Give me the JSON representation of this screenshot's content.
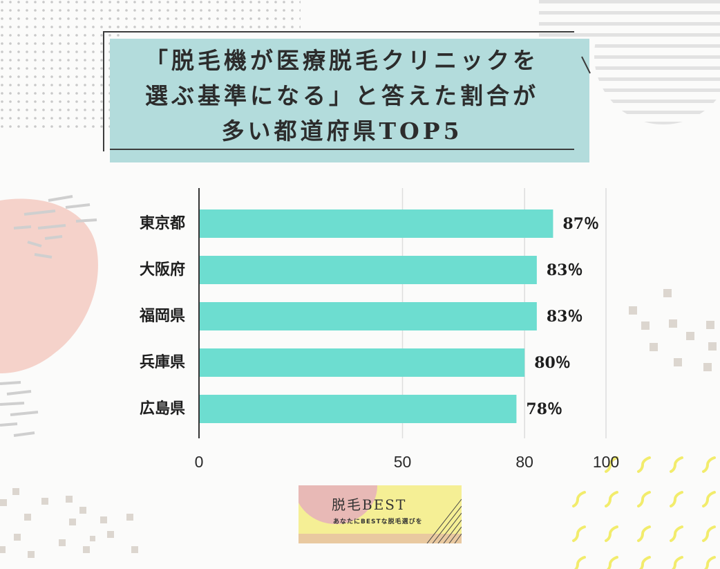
{
  "title_lines": [
    "「脱毛機が医療脱毛クリニックを",
    "選ぶ基準になる」と答えた割合が",
    "多い都道府県TOP5"
  ],
  "chart_data": {
    "type": "bar",
    "orientation": "horizontal",
    "categories": [
      "東京都",
      "大阪府",
      "福岡県",
      "兵庫県",
      "広島県"
    ],
    "values": [
      87,
      83,
      83,
      80,
      78
    ],
    "value_labels": [
      "87％",
      "83％",
      "83％",
      "80％",
      "78％"
    ],
    "xticks": [
      0,
      50,
      80,
      100
    ],
    "xlim": [
      0,
      100
    ],
    "bar_color": "#6dddd0",
    "grid": true
  },
  "logo": {
    "title": "脱毛BEST",
    "tagline": "あなたにBESTな脱毛選びを"
  },
  "colors": {
    "title_box": "#b3dcdc",
    "pink_blob": "#f5d2ca",
    "squares": "#dcd6cf",
    "yellow": "#f2ec6c",
    "logo_bg": "#f5ef95"
  }
}
